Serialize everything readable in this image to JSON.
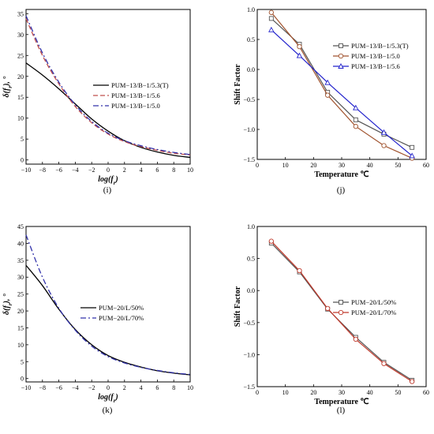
{
  "chart_data": [
    {
      "id": "i",
      "type": "line",
      "caption": "(i)",
      "xlabel_main": "log(f",
      "xlabel_sub": "r",
      "xlabel_tail": ")",
      "ylabel_main": "δ(f",
      "ylabel_sub": "r",
      "ylabel_tail": "), °",
      "xlim": [
        -10,
        10
      ],
      "ylim": [
        -1,
        36
      ],
      "xticks": [
        -10,
        -8,
        -6,
        -4,
        -2,
        0,
        2,
        4,
        6,
        8,
        10
      ],
      "yticks": [
        0,
        5,
        10,
        15,
        20,
        25,
        30,
        35
      ],
      "legend_position": "center-right",
      "series": [
        {
          "name": "PUM−13/B−1/5.3(T)",
          "color": "#000000",
          "dash": "solid",
          "x": [
            -10,
            -8,
            -6,
            -4,
            -2,
            0,
            2,
            4,
            6,
            8,
            10
          ],
          "y": [
            23.2,
            20.3,
            17.0,
            13.4,
            9.8,
            6.9,
            4.6,
            3.0,
            1.9,
            1.1,
            0.6
          ]
        },
        {
          "name": "PUM−13/B−1/5.6",
          "color": "#c0504d",
          "dash": "dashed",
          "x": [
            -10,
            -8,
            -6,
            -4,
            -2,
            0,
            2,
            4,
            6,
            8,
            10
          ],
          "y": [
            33.8,
            25.0,
            18.2,
            12.8,
            8.9,
            6.2,
            4.4,
            3.2,
            2.3,
            1.6,
            1.2
          ]
        },
        {
          "name": "PUM−13/B−1/5.0",
          "color": "#3333aa",
          "dash": "dashdot",
          "x": [
            -10,
            -8,
            -6,
            -4,
            -2,
            0,
            2,
            4,
            6,
            8,
            10
          ],
          "y": [
            34.5,
            25.6,
            18.6,
            13.2,
            9.2,
            6.4,
            4.6,
            3.4,
            2.5,
            1.8,
            1.3
          ]
        }
      ]
    },
    {
      "id": "j",
      "type": "line",
      "caption": "(j)",
      "xlabel": "Temperature ℃",
      "ylabel": "Shift Factor",
      "xlim": [
        0,
        60
      ],
      "ylim": [
        -1.5,
        1.0
      ],
      "xticks": [
        0,
        10,
        20,
        30,
        40,
        50,
        60
      ],
      "yticks": [
        1.0,
        0.5,
        0.0,
        -0.5,
        -1.0,
        -1.5
      ],
      "legend_position": "top-right",
      "series": [
        {
          "name": "PUM−13/B−1/5.3(T)",
          "color": "#555555",
          "marker": "square",
          "x": [
            5,
            15,
            25,
            35,
            45,
            55
          ],
          "y": [
            0.85,
            0.42,
            -0.38,
            -0.84,
            -1.08,
            -1.3
          ]
        },
        {
          "name": "PUM−13/B−1/5.0",
          "color": "#a0522d",
          "marker": "circle",
          "x": [
            5,
            15,
            25,
            35,
            45,
            55
          ],
          "y": [
            0.95,
            0.38,
            -0.43,
            -0.95,
            -1.27,
            -1.48
          ]
        },
        {
          "name": "PUM−13/B−1/5.6",
          "color": "#2222cc",
          "marker": "triangle",
          "x": [
            5,
            15,
            25,
            35,
            45,
            55
          ],
          "y": [
            0.66,
            0.23,
            -0.22,
            -0.64,
            -1.05,
            -1.44
          ]
        }
      ]
    },
    {
      "id": "k",
      "type": "line",
      "caption": "(k)",
      "xlabel_main": "log(f",
      "xlabel_sub": "r",
      "xlabel_tail": ")",
      "ylabel_main": "δ(f",
      "ylabel_sub": "r",
      "ylabel_tail": "), °",
      "xlim": [
        -10,
        10
      ],
      "ylim": [
        -1,
        45
      ],
      "xticks": [
        -10,
        -8,
        -6,
        -4,
        -2,
        0,
        2,
        4,
        6,
        8,
        10
      ],
      "yticks": [
        0,
        5,
        10,
        15,
        20,
        25,
        30,
        35,
        40,
        45
      ],
      "legend_position": "center-right",
      "series": [
        {
          "name": "PUM−20/L/50%",
          "color": "#000000",
          "dash": "solid",
          "x": [
            -10,
            -8,
            -6,
            -4,
            -2,
            0,
            2,
            4,
            6,
            8,
            10
          ],
          "y": [
            33.5,
            27.5,
            20.5,
            14.5,
            10.0,
            6.8,
            4.8,
            3.4,
            2.3,
            1.6,
            1.1
          ]
        },
        {
          "name": "PUM−20/L/70%",
          "color": "#3333aa",
          "dash": "dashdot",
          "x": [
            -10,
            -8,
            -6,
            -4,
            -2,
            0,
            2,
            4,
            6,
            8,
            10
          ],
          "y": [
            42.5,
            30.0,
            20.8,
            14.3,
            9.6,
            6.5,
            4.6,
            3.3,
            2.4,
            1.7,
            1.2
          ]
        }
      ]
    },
    {
      "id": "l",
      "type": "line",
      "caption": "(l)",
      "xlabel": "Temperature ℃",
      "ylabel": "Shift Factor",
      "xlim": [
        0,
        60
      ],
      "ylim": [
        -1.5,
        1.0
      ],
      "xticks": [
        0,
        10,
        20,
        30,
        40,
        50,
        60
      ],
      "yticks": [
        1.0,
        0.5,
        0.0,
        -0.5,
        -1.0,
        -1.5
      ],
      "legend_position": "top-right",
      "series": [
        {
          "name": "PUM−20/L/50%",
          "color": "#555555",
          "marker": "square",
          "x": [
            5,
            15,
            25,
            35,
            45,
            55
          ],
          "y": [
            0.74,
            0.29,
            -0.29,
            -0.73,
            -1.12,
            -1.4
          ]
        },
        {
          "name": "PUM−20/L/70%",
          "color": "#c0392b",
          "marker": "circle",
          "x": [
            5,
            15,
            25,
            35,
            45,
            55
          ],
          "y": [
            0.77,
            0.31,
            -0.28,
            -0.76,
            -1.14,
            -1.42
          ]
        }
      ]
    }
  ]
}
